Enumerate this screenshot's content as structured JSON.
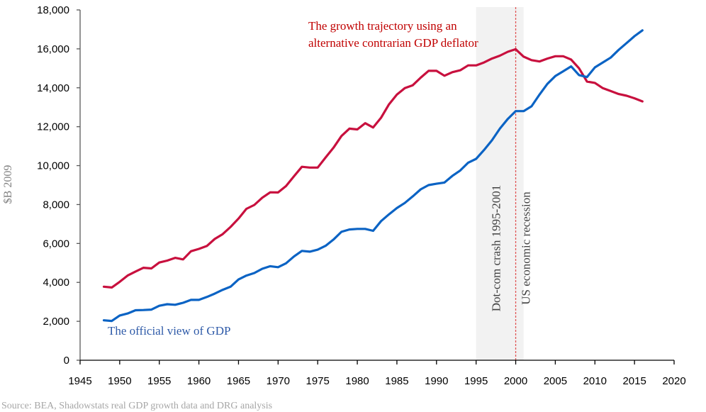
{
  "chart_data": {
    "type": "line",
    "title": "",
    "xlabel": "",
    "ylabel": "$B 2009",
    "xlim": [
      1945,
      2020
    ],
    "ylim": [
      0,
      18000
    ],
    "x_ticks": [
      1945,
      1950,
      1955,
      1960,
      1965,
      1970,
      1975,
      1980,
      1985,
      1990,
      1995,
      2000,
      2005,
      2010,
      2015,
      2020
    ],
    "x_tick_labels": [
      "1945",
      "1950",
      "1955",
      "1960",
      "1965",
      "1970",
      "1975",
      "1980",
      "1985",
      "1990",
      "1995",
      "2000",
      "2005",
      "2010",
      "2015",
      "2020"
    ],
    "y_ticks": [
      0,
      2000,
      4000,
      6000,
      8000,
      10000,
      12000,
      14000,
      16000,
      18000
    ],
    "y_tick_labels": [
      "0",
      "2,000",
      "4,000",
      "6,000",
      "8,000",
      "10,000",
      "12,000",
      "14,000",
      "16,000",
      "18,000"
    ],
    "grid": false,
    "x": [
      1948,
      1949,
      1950,
      1951,
      1952,
      1953,
      1954,
      1955,
      1956,
      1957,
      1958,
      1959,
      1960,
      1961,
      1962,
      1963,
      1964,
      1965,
      1966,
      1967,
      1968,
      1969,
      1970,
      1971,
      1972,
      1973,
      1974,
      1975,
      1976,
      1977,
      1978,
      1979,
      1980,
      1981,
      1982,
      1983,
      1984,
      1985,
      1986,
      1987,
      1988,
      1989,
      1990,
      1991,
      1992,
      1993,
      1994,
      1995,
      1996,
      1997,
      1998,
      1999,
      2000,
      2001,
      2002,
      2003,
      2004,
      2005,
      2006,
      2007,
      2008,
      2009,
      2010,
      2011,
      2012,
      2013,
      2014,
      2015,
      2016
    ],
    "series": [
      {
        "name": "The growth trajectory using an alternative contrarian GDP deflator",
        "color": "#c8103e",
        "values": [
          3780,
          3740,
          4030,
          4350,
          4560,
          4750,
          4720,
          5020,
          5120,
          5260,
          5180,
          5600,
          5720,
          5870,
          6230,
          6480,
          6850,
          7280,
          7780,
          7980,
          8350,
          8630,
          8620,
          8950,
          9450,
          9940,
          9900,
          9900,
          10420,
          10920,
          11520,
          11900,
          11860,
          12180,
          11960,
          12460,
          13150,
          13650,
          13980,
          14130,
          14520,
          14870,
          14870,
          14620,
          14800,
          14900,
          15150,
          15150,
          15300,
          15500,
          15650,
          15850,
          15980,
          15600,
          15420,
          15350,
          15500,
          15620,
          15620,
          15450,
          15000,
          14320,
          14250,
          13980,
          13830,
          13680,
          13590,
          13460,
          13300
        ]
      },
      {
        "name": "The official view of GDP",
        "color": "#0b63c4",
        "values": [
          2050,
          2020,
          2300,
          2400,
          2570,
          2580,
          2600,
          2800,
          2880,
          2850,
          2950,
          3100,
          3100,
          3250,
          3420,
          3620,
          3780,
          4150,
          4350,
          4480,
          4700,
          4830,
          4780,
          4980,
          5330,
          5620,
          5580,
          5680,
          5880,
          6200,
          6600,
          6720,
          6750,
          6750,
          6650,
          7150,
          7500,
          7820,
          8080,
          8420,
          8780,
          9000,
          9070,
          9130,
          9470,
          9750,
          10150,
          10350,
          10800,
          11300,
          11900,
          12400,
          12800,
          12800,
          13050,
          13650,
          14200,
          14600,
          14850,
          15100,
          14650,
          14550,
          15050,
          15300,
          15550,
          15950,
          16300,
          16650,
          16950
        ]
      }
    ],
    "annotations": {
      "red_label_lines": [
        "The growth trajectory using an",
        "alternative contrarian GDP deflator"
      ],
      "blue_label": "The official view of GDP",
      "shaded_band": {
        "from": 1995,
        "to": 2001,
        "label": "Dot-com crash 1995-2001",
        "color": "#f2f2f2"
      },
      "vertical_line": {
        "x": 2000,
        "label": "US economic recession",
        "color": "#e05555"
      }
    },
    "legend": "none (inline labels)",
    "source": "Source: BEA, Shadowstats real GDP growth data and DRG analysis"
  }
}
